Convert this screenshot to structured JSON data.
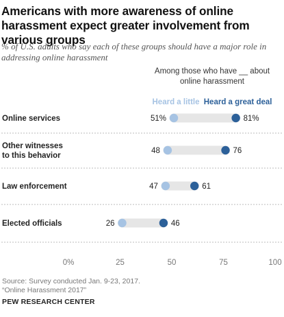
{
  "header": {
    "title": "Americans with more awareness of online harassment expect greater involvement from various groups",
    "subtitle": "% of U.S. adults who say each of these groups should have a major role in addressing online harassment",
    "among_label": "Among those who have __ about online harassment"
  },
  "footer": {
    "source": "Source: Survey conducted Jan. 9-23, 2017.",
    "report": "“Online Harassment 2017”",
    "brand": "PEW RESEARCH CENTER"
  },
  "colors": {
    "little": "#a6c3e3",
    "great": "#2c6099",
    "bar": "#e6e6e6",
    "divider": "#bbbbbb"
  },
  "chart_data": {
    "type": "dot-plot",
    "series": [
      {
        "name": "Heard a little",
        "values": [
          51,
          48,
          47,
          26
        ]
      },
      {
        "name": "Heard a great deal",
        "values": [
          81,
          76,
          61,
          46
        ]
      }
    ],
    "categories": [
      [
        "Online services"
      ],
      [
        "Other witnesses",
        "to this behavior"
      ],
      [
        "Law enforcement"
      ],
      [
        "Elected officials"
      ]
    ],
    "value_labels": [
      {
        "little": "51%",
        "great": "81%"
      },
      {
        "little": "48",
        "great": "76"
      },
      {
        "little": "47",
        "great": "61"
      },
      {
        "little": "26",
        "great": "46"
      }
    ],
    "x_ticks": [
      "0%",
      "25",
      "50",
      "75",
      "100"
    ],
    "x_tick_values": [
      0,
      25,
      50,
      75,
      100
    ],
    "xlim": [
      0,
      100
    ],
    "grid": false,
    "legend": "top"
  }
}
